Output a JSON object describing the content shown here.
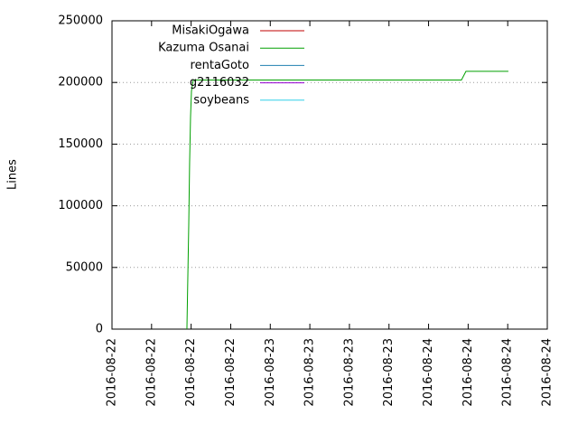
{
  "chart_data": {
    "type": "line",
    "y_label": "Lines",
    "xlim": [
      0,
      66
    ],
    "xticks": [
      {
        "value": 0,
        "label": "2016-08-22"
      },
      {
        "value": 6,
        "label": "2016-08-22"
      },
      {
        "value": 12,
        "label": "2016-08-22"
      },
      {
        "value": 18,
        "label": "2016-08-22"
      },
      {
        "value": 24,
        "label": "2016-08-23"
      },
      {
        "value": 30,
        "label": "2016-08-23"
      },
      {
        "value": 36,
        "label": "2016-08-23"
      },
      {
        "value": 42,
        "label": "2016-08-23"
      },
      {
        "value": 48,
        "label": "2016-08-24"
      },
      {
        "value": 54,
        "label": "2016-08-24"
      },
      {
        "value": 60,
        "label": "2016-08-24"
      },
      {
        "value": 66,
        "label": "2016-08-24"
      }
    ],
    "ylim": [
      0,
      250000
    ],
    "yticks": [
      0,
      50000,
      100000,
      150000,
      200000,
      250000
    ],
    "grid": true,
    "legend": "top-left",
    "series": [
      {
        "name": "MisakiOgawa",
        "color": "#c00000",
        "x": [],
        "values": []
      },
      {
        "name": "Kazuma Osanai",
        "color": "#00a000",
        "x": [
          11.36,
          11.64,
          11.77,
          11.91,
          12.05,
          12.32,
          52.98,
          53.67,
          60.1
        ],
        "values": [
          0,
          85000,
          135000,
          172000,
          193000,
          202000,
          202000,
          209000,
          209000
        ]
      },
      {
        "name": "rentaGoto",
        "color": "#2080b0",
        "x": [],
        "values": []
      },
      {
        "name": "g2116032",
        "color": "#9400d3",
        "x": [],
        "values": []
      },
      {
        "name": "soybeans",
        "color": "#30d0e8",
        "x": [],
        "values": []
      }
    ]
  }
}
